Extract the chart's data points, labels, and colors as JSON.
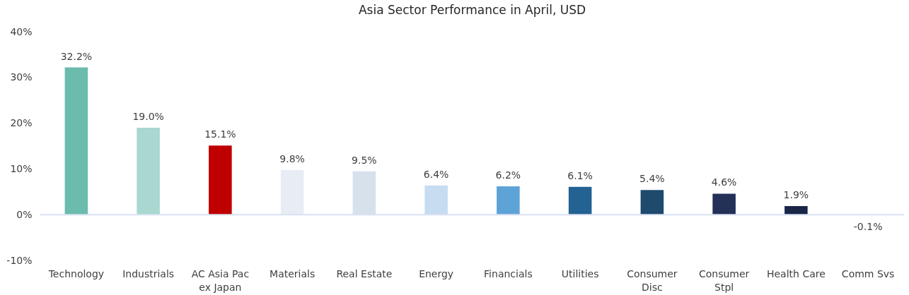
{
  "chart_data": {
    "type": "bar",
    "title": "Asia Sector Performance in April, USD",
    "categories": [
      "Technology",
      "Industrials",
      "AC Asia Pac ex Japan",
      "Materials",
      "Real Estate",
      "Energy",
      "Financials",
      "Utilities",
      "Consumer Disc",
      "Consumer Stpl",
      "Health Care",
      "Comm Svs"
    ],
    "values": [
      32.2,
      19.0,
      15.1,
      9.8,
      9.5,
      6.4,
      6.2,
      6.1,
      5.4,
      4.6,
      1.9,
      -0.1
    ],
    "colors": [
      "#6bbcad",
      "#a8d8cf",
      "#c00000",
      "#e8edf5",
      "#d7e1ec",
      "#c6ddf1",
      "#5ea3d8",
      "#236293",
      "#1d4a6d",
      "#233058",
      "#1a2648",
      "#141c38"
    ],
    "value_labels": [
      "32.2%",
      "19.0%",
      "15.1%",
      "9.8%",
      "9.5%",
      "6.4%",
      "6.2%",
      "6.1%",
      "5.4%",
      "4.6%",
      "1.9%",
      "-0.1%"
    ],
    "ylim": [
      -10,
      40
    ],
    "yticks": [
      {
        "value": -10,
        "label": "-10%"
      },
      {
        "value": 0,
        "label": "0%"
      },
      {
        "value": 10,
        "label": "10%"
      },
      {
        "value": 20,
        "label": "20%"
      },
      {
        "value": 30,
        "label": "30%"
      },
      {
        "value": 40,
        "label": "40%"
      }
    ],
    "ref_lines": [
      {
        "axis": "y",
        "value": 0,
        "color": "#d9e1f2"
      }
    ]
  }
}
